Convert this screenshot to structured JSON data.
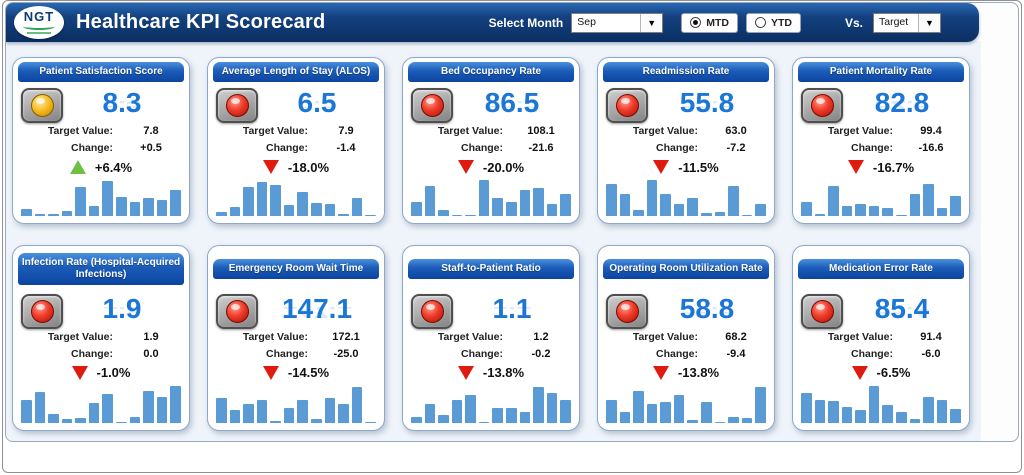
{
  "header": {
    "logo_text": "NGT",
    "title": "Healthcare KPI Scorecard",
    "select_month_label": "Select Month",
    "month_value": "Sep",
    "mtd_label": "MTD",
    "ytd_label": "YTD",
    "period_selected": "MTD",
    "vs_label": "Vs.",
    "vs_value": "Target"
  },
  "icons": {
    "dropdown_arrow": "▼"
  },
  "labels": {
    "target": "Target Value:",
    "change": "Change:"
  },
  "colors": {
    "header_blue": "#0b2f63",
    "title_bar_blue": "#0b44a0",
    "value_blue": "#1b76d6",
    "bar_blue": "#5b9bd5",
    "up_green": "#6fbf44",
    "down_red": "#df1a0e",
    "status_red": "#f03b2a",
    "status_yellow": "#f6b91e"
  },
  "cards": [
    {
      "title": "Patient Satisfaction Score",
      "status": "yellow",
      "value": "8.3",
      "target": "7.8",
      "change": "+0.5",
      "pct": "+6.4%",
      "direction": "up",
      "bars": [
        18,
        4,
        4,
        12,
        72,
        25,
        88,
        48,
        35,
        45,
        40,
        65
      ]
    },
    {
      "title": "Average Length of Stay (ALOS)",
      "status": "red",
      "value": "6.5",
      "target": "7.9",
      "change": "-1.4",
      "pct": "-18.0%",
      "direction": "down",
      "bars": [
        10,
        22,
        72,
        85,
        78,
        28,
        60,
        32,
        30,
        4,
        45,
        2
      ]
    },
    {
      "title": "Bed Occupancy Rate",
      "status": "red",
      "value": "86.5",
      "target": "108.1",
      "change": "-21.6",
      "pct": "-20.0%",
      "direction": "down",
      "bars": [
        35,
        75,
        15,
        3,
        3,
        90,
        45,
        35,
        65,
        70,
        30,
        55
      ]
    },
    {
      "title": "Readmission Rate",
      "status": "red",
      "value": "55.8",
      "target": "63.0",
      "change": "-7.2",
      "pct": "-11.5%",
      "direction": "down",
      "bars": [
        80,
        55,
        15,
        90,
        55,
        30,
        45,
        8,
        10,
        75,
        2,
        30
      ]
    },
    {
      "title": "Patient Mortality Rate",
      "status": "red",
      "value": "82.8",
      "target": "99.4",
      "change": "-16.6",
      "pct": "-16.7%",
      "direction": "down",
      "bars": [
        35,
        5,
        75,
        25,
        30,
        25,
        20,
        2,
        55,
        80,
        20,
        50
      ]
    },
    {
      "title": "Infection Rate (Hospital-Acquired Infections)",
      "status": "red",
      "value": "1.9",
      "target": "1.9",
      "change": "0.0",
      "pct": "-1.0%",
      "direction": "down",
      "bars": [
        55,
        72,
        22,
        10,
        12,
        48,
        68,
        3,
        15,
        75,
        62,
        88
      ]
    },
    {
      "title": "Emergency Room Wait Time",
      "status": "red",
      "value": "147.1",
      "target": "172.1",
      "change": "-25.0",
      "pct": "-14.5%",
      "direction": "down",
      "bars": [
        60,
        30,
        45,
        55,
        5,
        35,
        55,
        10,
        60,
        45,
        85,
        2
      ]
    },
    {
      "title": "Staff-to-Patient Ratio",
      "status": "red",
      "value": "1.1",
      "target": "1.2",
      "change": "-0.2",
      "pct": "-13.8%",
      "direction": "down",
      "bars": [
        15,
        45,
        20,
        55,
        65,
        2,
        35,
        35,
        25,
        85,
        70,
        55
      ]
    },
    {
      "title": "Operating Room Utilization Rate",
      "status": "red",
      "value": "58.8",
      "target": "68.2",
      "change": "-9.4",
      "pct": "-13.8%",
      "direction": "down",
      "bars": [
        55,
        25,
        75,
        45,
        50,
        65,
        8,
        50,
        3,
        15,
        12,
        85
      ]
    },
    {
      "title": "Medication Error Rate",
      "status": "red",
      "value": "85.4",
      "target": "91.4",
      "change": "-6.0",
      "pct": "-6.5%",
      "direction": "down",
      "bars": [
        70,
        55,
        52,
        38,
        30,
        88,
        42,
        25,
        10,
        62,
        55,
        32
      ]
    }
  ]
}
